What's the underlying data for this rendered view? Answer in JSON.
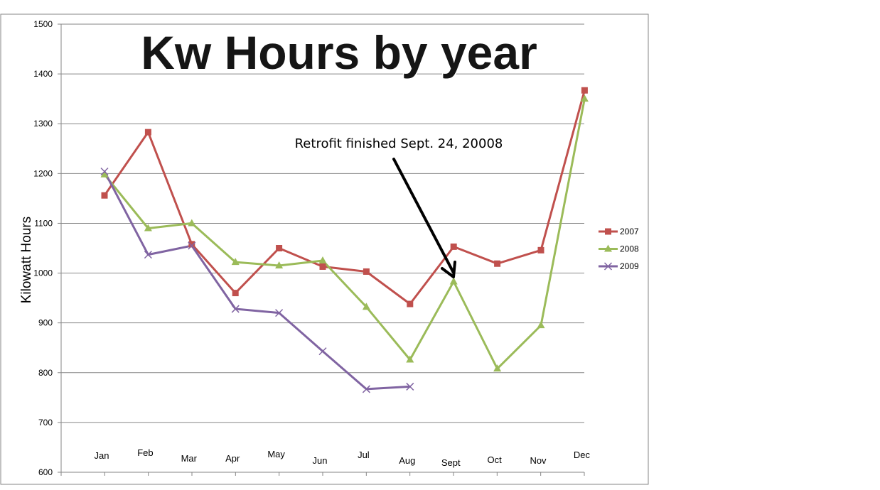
{
  "chart_data": {
    "type": "line",
    "title": "Kw Hours by year",
    "xlabel": "",
    "ylabel": "Kilowatt Hours",
    "ylim": [
      600,
      1500
    ],
    "yticks": [
      600,
      700,
      800,
      900,
      1000,
      1100,
      1200,
      1300,
      1400,
      1500
    ],
    "grid": true,
    "legend_position": "right",
    "categories": [
      "Jan",
      "Feb",
      "Mar",
      "Apr",
      "May",
      "Jun",
      "Jul",
      "Aug",
      "Sept",
      "Oct",
      "Nov",
      "Dec"
    ],
    "series": [
      {
        "name": "2007",
        "color": "#c0504d",
        "marker": "square",
        "values": [
          1156,
          1283,
          1058,
          960,
          1050,
          1013,
          1003,
          938,
          1053,
          1019,
          1046,
          1367
        ]
      },
      {
        "name": "2008",
        "color": "#9bbb59",
        "marker": "triangle",
        "values": [
          1198,
          1090,
          1100,
          1022,
          1015,
          1025,
          932,
          826,
          983,
          808,
          895,
          1350
        ]
      },
      {
        "name": "2009",
        "color": "#8064a2",
        "marker": "x",
        "values": [
          1204,
          1037,
          1055,
          928,
          920,
          843,
          767,
          772,
          null,
          null,
          null,
          null
        ]
      }
    ],
    "annotation": {
      "text": "Retrofit finished Sept. 24, 20008",
      "target_category": "Sept",
      "target_value": 990
    }
  }
}
